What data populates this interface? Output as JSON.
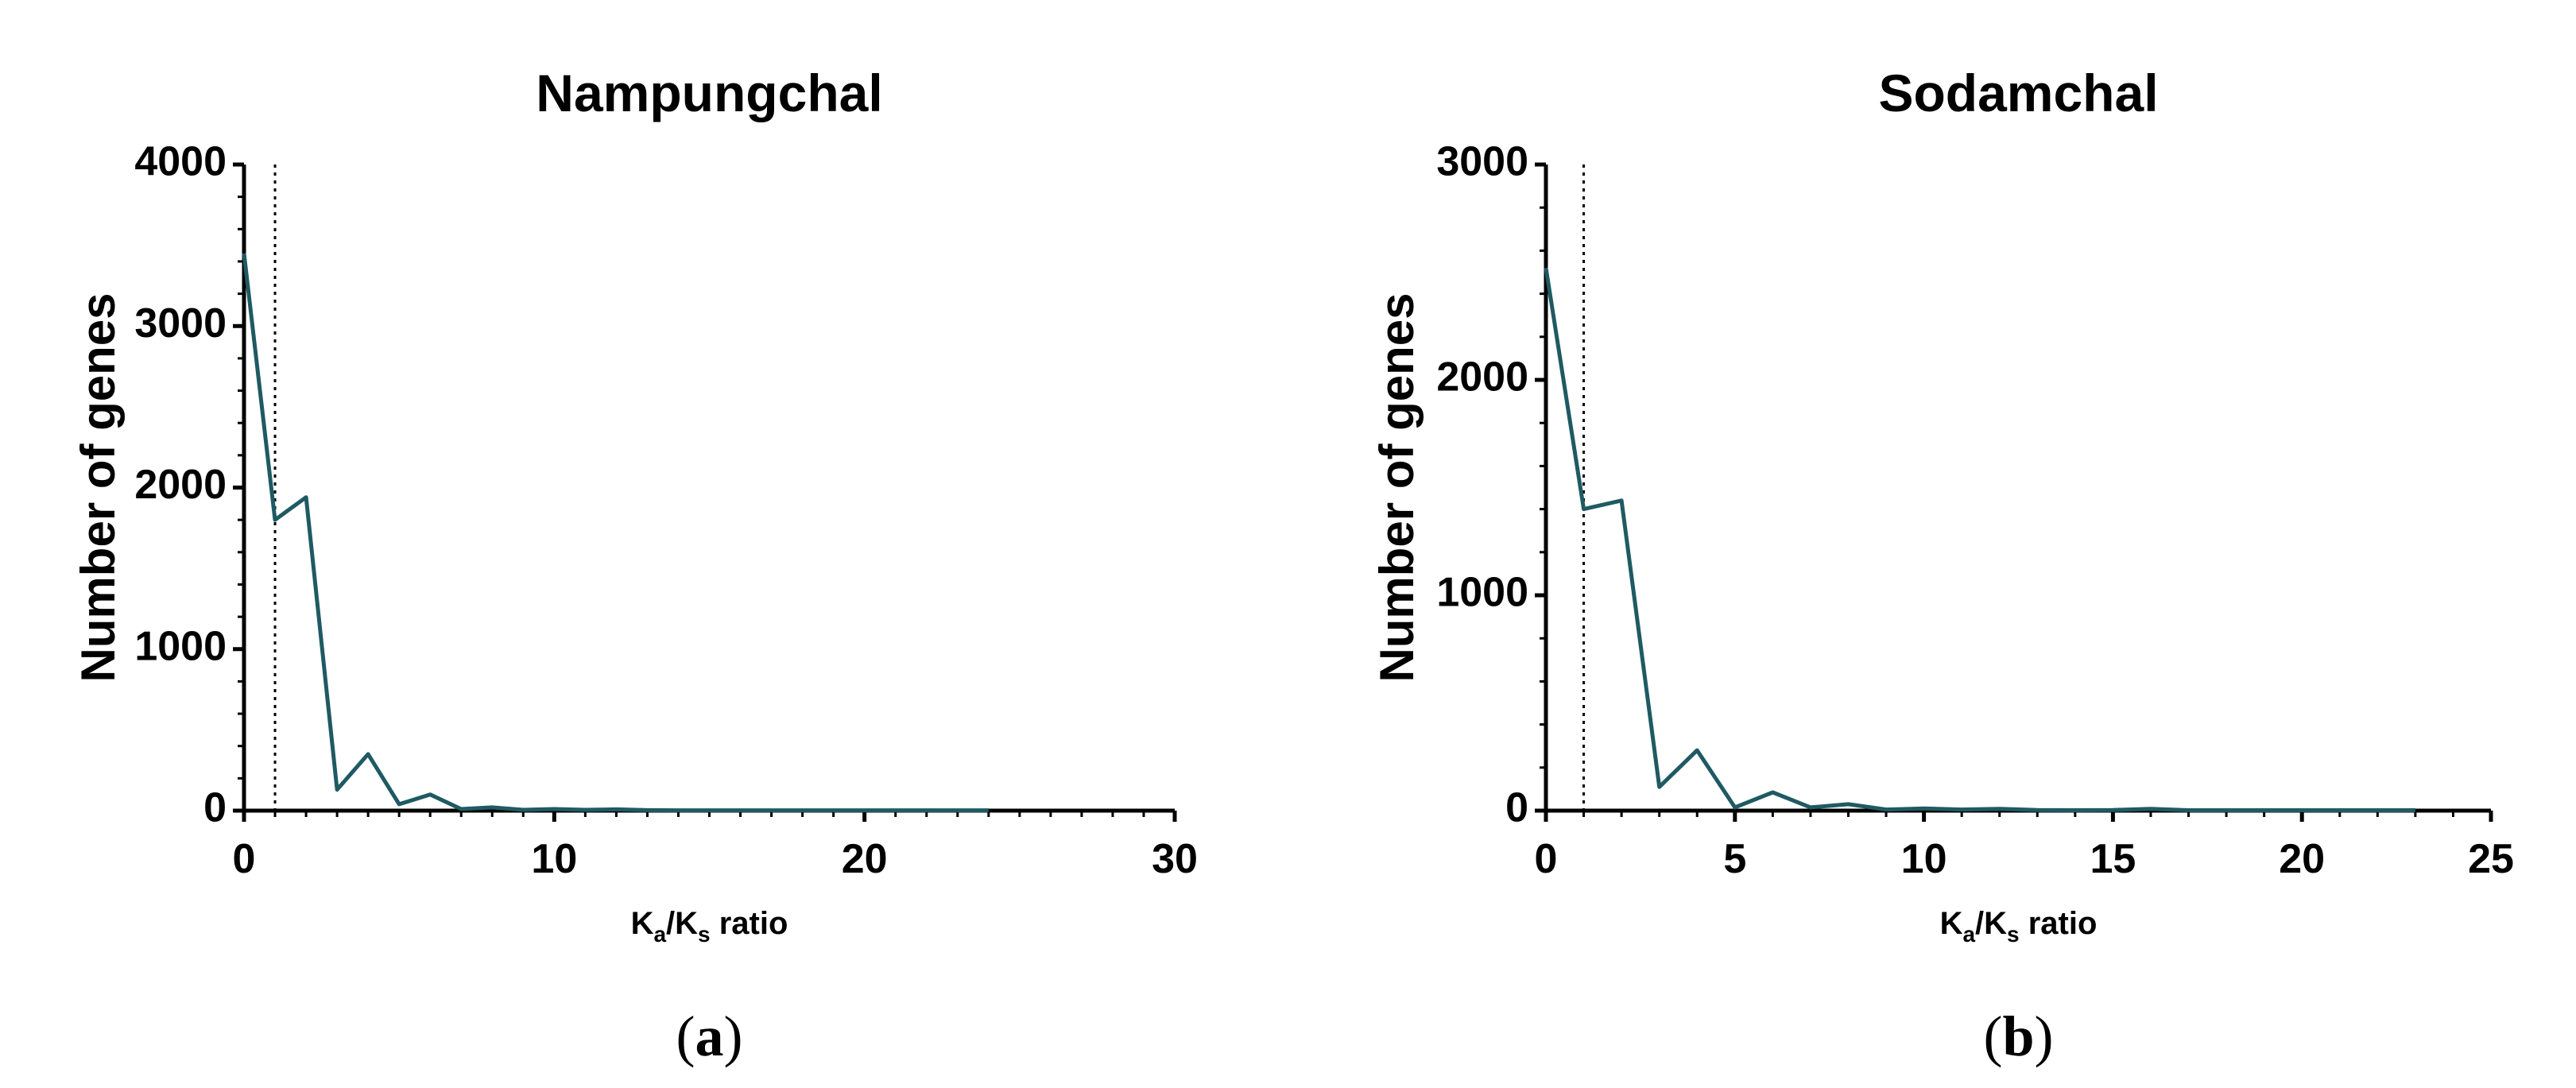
{
  "chart_data": [
    {
      "type": "line",
      "title": "Nampungchal",
      "ylabel": "Number of genes",
      "xlabel_main": "K",
      "xlabel_sub1": "a",
      "xlabel_mid": "/K",
      "xlabel_sub2": "s",
      "xlabel_tail": " ratio",
      "panel_label": "a",
      "xlim": [
        0,
        30
      ],
      "ylim": [
        0,
        4000
      ],
      "xticks": [
        0,
        10,
        20,
        30
      ],
      "xtick_labels": [
        "0",
        "10",
        "20",
        "30"
      ],
      "yticks": [
        0,
        1000,
        2000,
        3000,
        4000
      ],
      "ytick_labels": [
        "0",
        "1000",
        "2000",
        "3000",
        "4000"
      ],
      "reference_x": 1,
      "line_color": "#1f5a63",
      "series": [
        {
          "x": [
            0,
            1,
            2,
            3,
            4,
            5,
            6,
            7,
            8,
            9,
            10,
            11,
            12,
            13,
            14,
            15,
            16,
            17,
            18,
            19,
            20,
            21,
            22,
            23,
            24
          ],
          "values": [
            3450,
            1800,
            1940,
            130,
            350,
            40,
            100,
            10,
            20,
            5,
            10,
            5,
            8,
            3,
            2,
            2,
            2,
            2,
            2,
            2,
            2,
            2,
            2,
            2,
            2
          ]
        }
      ]
    },
    {
      "type": "line",
      "title": "Sodamchal",
      "ylabel": "Number of genes",
      "xlabel_main": "K",
      "xlabel_sub1": "a",
      "xlabel_mid": "/K",
      "xlabel_sub2": "s",
      "xlabel_tail": " ratio",
      "panel_label": "b",
      "xlim": [
        0,
        25
      ],
      "ylim": [
        0,
        3000
      ],
      "xticks": [
        0,
        5,
        10,
        15,
        20,
        25
      ],
      "xtick_labels": [
        "0",
        "5",
        "10",
        "15",
        "20",
        "25"
      ],
      "yticks": [
        0,
        1000,
        2000,
        3000
      ],
      "ytick_labels": [
        "0",
        "1000",
        "2000",
        "3000"
      ],
      "reference_x": 1,
      "line_color": "#1f5a63",
      "series": [
        {
          "x": [
            0,
            1,
            2,
            3,
            4,
            5,
            6,
            7,
            8,
            9,
            10,
            11,
            12,
            13,
            14,
            15,
            16,
            17,
            18,
            19,
            20,
            21,
            22,
            23
          ],
          "values": [
            2520,
            1400,
            1440,
            110,
            280,
            15,
            85,
            15,
            30,
            5,
            10,
            5,
            8,
            3,
            2,
            3,
            8,
            2,
            2,
            2,
            2,
            2,
            2,
            2
          ]
        }
      ]
    }
  ]
}
